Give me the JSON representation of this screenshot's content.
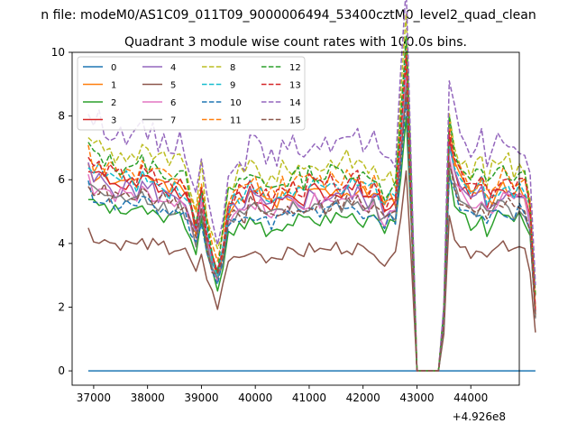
{
  "chart_data": {
    "type": "line",
    "suptitle": "n file: modeM0/AS1C09_011T09_9000006494_53400cztM0_level2_quad_clean",
    "title": "Quadrant 3 module wise count rates with 100.0s bins.",
    "xlabel": "",
    "ylabel": "",
    "x_offset_label": "+4.926e8",
    "xlim": [
      36600,
      44900
    ],
    "ylim": [
      -0.45,
      10
    ],
    "xticks": [
      37000,
      38000,
      39000,
      40000,
      41000,
      42000,
      43000,
      44000
    ],
    "xtick_labels": [
      "37000",
      "38000",
      "39000",
      "40000",
      "41000",
      "42000",
      "43000",
      "44000"
    ],
    "yticks": [
      0,
      2,
      4,
      6,
      8,
      10
    ],
    "ytick_labels": [
      "0",
      "2",
      "4",
      "6",
      "8",
      "10"
    ],
    "legend_position": "upper left",
    "legend_columns": 4,
    "x_start": 36900,
    "x_step": 100,
    "envelope": [
      6.2,
      5.8,
      5.9,
      5.8,
      5.7,
      5.6,
      5.6,
      5.6,
      5.7,
      5.5,
      5.7,
      5.6,
      5.6,
      5.4,
      5.5,
      5.3,
      5.4,
      5.4,
      5.2,
      4.8,
      4.2,
      5.2,
      4.1,
      3.4,
      2.9,
      3.7,
      4.8,
      5.0,
      5.1,
      5.0,
      5.4,
      5.3,
      5.2,
      5.0,
      5.0,
      5.1,
      5.2,
      5.2,
      5.3,
      5.3,
      5.2,
      5.4,
      5.4,
      5.3,
      5.3,
      5.4,
      5.5,
      5.4,
      5.5,
      5.4,
      5.5,
      5.3,
      5.2,
      5.4,
      5.1,
      4.8,
      5.1,
      5.0,
      7.0,
      9.1,
      4.8,
      0,
      0,
      0,
      0,
      0,
      1.6,
      6.8,
      6.0,
      5.6,
      5.5,
      5.2,
      5.3,
      5.5,
      5.0,
      5.2,
      5.4,
      5.5,
      5.4,
      5.2,
      5.4,
      5.3,
      4.6,
      1.9
    ],
    "series": [
      {
        "name": "0",
        "color": "#1f77b4",
        "style": "solid",
        "scale": 0.0,
        "seed": 0
      },
      {
        "name": "1",
        "color": "#ff7f0e",
        "style": "solid",
        "scale": 1.06,
        "seed": 1
      },
      {
        "name": "2",
        "color": "#2ca02c",
        "style": "solid",
        "scale": 0.89,
        "seed": 2
      },
      {
        "name": "3",
        "color": "#d62728",
        "style": "solid",
        "scale": 1.05,
        "seed": 3
      },
      {
        "name": "4",
        "color": "#9467bd",
        "style": "solid",
        "scale": 1.02,
        "seed": 4
      },
      {
        "name": "5",
        "color": "#8c564b",
        "style": "solid",
        "scale": 0.71,
        "seed": 5
      },
      {
        "name": "6",
        "color": "#e377c2",
        "style": "solid",
        "scale": 0.99,
        "seed": 6
      },
      {
        "name": "7",
        "color": "#7f7f7f",
        "style": "solid",
        "scale": 0.96,
        "seed": 7
      },
      {
        "name": "8",
        "color": "#bcbd22",
        "style": "dashed",
        "scale": 1.21,
        "seed": 8
      },
      {
        "name": "9",
        "color": "#17becf",
        "style": "dashed",
        "scale": 1.07,
        "seed": 9
      },
      {
        "name": "10",
        "color": "#1f77b4",
        "style": "dashed",
        "scale": 0.93,
        "seed": 10
      },
      {
        "name": "11",
        "color": "#ff7f0e",
        "style": "dashed",
        "scale": 1.12,
        "seed": 11
      },
      {
        "name": "12",
        "color": "#2ca02c",
        "style": "dashed",
        "scale": 1.15,
        "seed": 12
      },
      {
        "name": "13",
        "color": "#d62728",
        "style": "dashed",
        "scale": 1.09,
        "seed": 13
      },
      {
        "name": "14",
        "color": "#9467bd",
        "style": "dashed",
        "scale": 1.33,
        "seed": 14
      },
      {
        "name": "15",
        "color": "#8c564b",
        "style": "dashed",
        "scale": 0.97,
        "seed": 15
      }
    ]
  }
}
